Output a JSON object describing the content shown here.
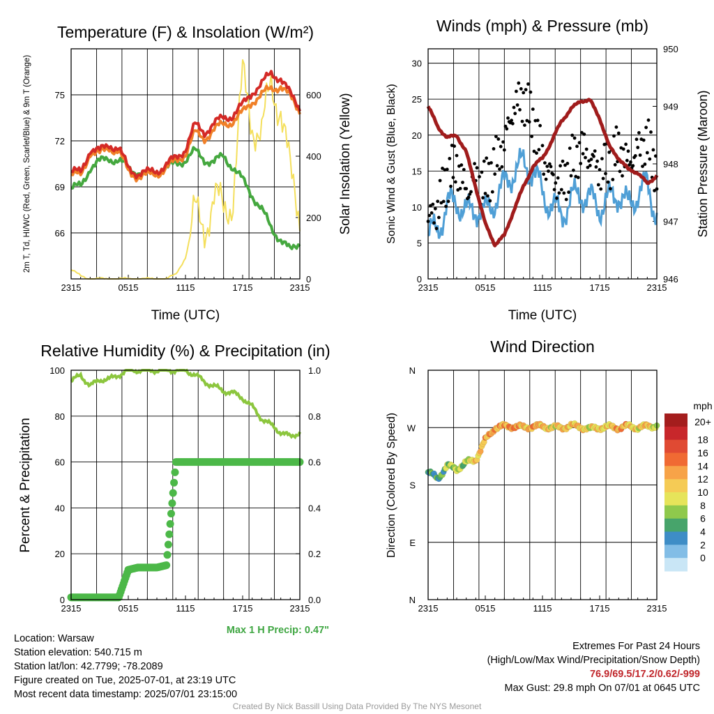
{
  "chart_data": [
    {
      "id": "temperature",
      "type": "line",
      "title": "Temperature (F) & Insolation (W/m²)",
      "xlabel": "Time (UTC)",
      "ylabel": "2m T, Td, HI/WC (Red, Green, Scarlet/Blue) & 9m T (Orange)",
      "ylabel_right": "Solar Insolation (Yellow)",
      "x_ticks": [
        "2315",
        "0515",
        "1115",
        "1715",
        "2315"
      ],
      "x": [
        0,
        1,
        2,
        3,
        4,
        5,
        6,
        7,
        8,
        9,
        10,
        11,
        12,
        13,
        14,
        15,
        16,
        17,
        18,
        19,
        20,
        21,
        22,
        23,
        24
      ],
      "ylim": [
        63,
        78
      ],
      "y_ticks": [
        66,
        69,
        72,
        75
      ],
      "ylim_right": [
        0,
        750
      ],
      "y_ticks_right": [
        0,
        200,
        400,
        600
      ],
      "series": [
        {
          "role": "2m T",
          "color": "#d42a26",
          "axis": "left",
          "values": [
            70.0,
            69.9,
            71.5,
            71.3,
            71.8,
            71.5,
            70.2,
            69.9,
            69.9,
            70.1,
            70.4,
            70.9,
            71.5,
            73.0,
            72.6,
            73.1,
            73.5,
            73.7,
            74.3,
            75.2,
            75.7,
            76.4,
            76.1,
            75.0,
            74.2
          ]
        },
        {
          "role": "9m T",
          "color": "#f08028",
          "axis": "left",
          "values": [
            69.8,
            69.7,
            71.3,
            71.1,
            71.6,
            71.3,
            70.0,
            69.7,
            69.7,
            69.9,
            70.2,
            70.7,
            71.2,
            72.5,
            72.2,
            72.7,
            73.1,
            73.3,
            73.8,
            74.6,
            75.0,
            75.4,
            75.6,
            74.8,
            74.0
          ]
        },
        {
          "role": "Td",
          "color": "#45a83f",
          "axis": "left",
          "values": [
            68.9,
            69.0,
            70.3,
            70.6,
            70.9,
            70.7,
            70.2,
            70.0,
            69.8,
            70.0,
            70.2,
            70.5,
            70.8,
            71.3,
            70.8,
            70.6,
            71.0,
            70.3,
            69.4,
            68.5,
            67.5,
            66.3,
            65.6,
            64.8,
            65.4
          ]
        },
        {
          "role": "Solar Insolation",
          "color": "#f4df5c",
          "axis": "right",
          "values": [
            30,
            10,
            0,
            0,
            0,
            0,
            0,
            0,
            0,
            0,
            0,
            15,
            70,
            210,
            180,
            250,
            230,
            270,
            650,
            520,
            460,
            640,
            560,
            330,
            220
          ]
        }
      ]
    },
    {
      "id": "winds",
      "type": "line",
      "title": "Winds (mph) & Pressure (mb)",
      "xlabel": "Time (UTC)",
      "ylabel": "Sonic Wind & Gust (Blue, Black)",
      "ylabel_right": "Station Pressure (Maroon)",
      "x_ticks": [
        "2315",
        "0515",
        "1115",
        "1715",
        "2315"
      ],
      "x": [
        0,
        1,
        2,
        3,
        4,
        5,
        6,
        7,
        8,
        9,
        10,
        11,
        12,
        13,
        14,
        15,
        16,
        17,
        18,
        19,
        20,
        21,
        22,
        23,
        24
      ],
      "ylim": [
        0,
        32
      ],
      "y_ticks": [
        0,
        5,
        10,
        15,
        20,
        25,
        30
      ],
      "ylim_right": [
        946,
        950
      ],
      "y_ticks_right": [
        946,
        947,
        948,
        949,
        950
      ],
      "series": [
        {
          "role": "Sonic Wind",
          "color": "#4f9fd6",
          "axis": "left",
          "values": [
            6,
            7,
            10,
            11,
            9,
            10,
            9,
            11,
            13,
            15,
            16,
            15,
            12,
            10,
            9,
            11,
            12,
            11,
            10,
            11,
            12,
            10,
            12,
            13,
            9
          ]
        },
        {
          "role": "Gust",
          "color": "#000000",
          "axis": "left",
          "style": "dots",
          "values": [
            8,
            10,
            14,
            16,
            12,
            14,
            13,
            16,
            19,
            24,
            25,
            22,
            17,
            14,
            13,
            16,
            18,
            17,
            15,
            16,
            18,
            16,
            18,
            19,
            15
          ]
        },
        {
          "role": "Station Pressure",
          "color": "#a01c1c",
          "axis": "right",
          "values": [
            949.0,
            948.65,
            948.45,
            948.5,
            948.2,
            947.6,
            946.95,
            946.6,
            946.75,
            947.2,
            947.6,
            947.95,
            948.1,
            948.4,
            948.75,
            948.95,
            949.1,
            949.1,
            948.8,
            948.3,
            948.1,
            947.9,
            947.85,
            947.65,
            947.8
          ]
        }
      ]
    },
    {
      "id": "humidity",
      "type": "line",
      "title": "Relative Humidity (%) & Precipitation (in)",
      "ylabel": "Percent & Precipitation",
      "x_ticks": [
        "2315",
        "0515",
        "1115",
        "1715",
        "2315"
      ],
      "x": [
        0,
        1,
        2,
        3,
        4,
        5,
        6,
        7,
        8,
        9,
        10,
        11,
        12,
        13,
        14,
        15,
        16,
        17,
        18,
        19,
        20,
        21,
        22,
        23,
        24
      ],
      "ylim": [
        0,
        100
      ],
      "y_ticks": [
        0,
        20,
        40,
        60,
        80,
        100
      ],
      "ylim_right": [
        0,
        1.0
      ],
      "y_ticks_right": [
        "0.0",
        "0.2",
        "0.4",
        "0.6",
        "0.8",
        "1.0"
      ],
      "series": [
        {
          "role": "Relative Humidity",
          "color": "#8cc63e",
          "axis": "left",
          "values": [
            95,
            98,
            93,
            96,
            96,
            98,
            100,
            100,
            100,
            100,
            100,
            100,
            100,
            98,
            95,
            93,
            91,
            90,
            88,
            84,
            79,
            76,
            73,
            71,
            73
          ]
        },
        {
          "role": "Precipitation",
          "color": "#4cb848",
          "axis": "right",
          "style": "dots",
          "values": [
            0.01,
            0.01,
            0.01,
            0.01,
            0.01,
            0.01,
            0.13,
            0.14,
            0.14,
            0.14,
            0.15,
            0.6,
            0.6,
            0.6,
            0.6,
            0.6,
            0.6,
            0.6,
            0.6,
            0.6,
            0.6,
            0.6,
            0.6,
            0.6,
            0.6
          ]
        }
      ],
      "annotation": "Max 1 H Precip: 0.47\""
    },
    {
      "id": "direction",
      "type": "scatter",
      "title": "Wind Direction",
      "ylabel": "Direction (Colored By Speed)",
      "x_ticks": [
        "2315",
        "0515",
        "1115",
        "1715",
        "2315"
      ],
      "x": [
        0,
        1,
        2,
        3,
        4,
        5,
        6,
        7,
        8,
        9,
        10,
        11,
        12,
        13,
        14,
        15,
        16,
        17,
        18,
        19,
        20,
        21,
        22,
        23,
        24
      ],
      "y_ticks": [
        "N",
        "E",
        "S",
        "W",
        "N"
      ],
      "ylim": [
        0,
        360
      ],
      "values": [
        200,
        190,
        210,
        205,
        215,
        220,
        250,
        270,
        272,
        272,
        270,
        272,
        272,
        270,
        270,
        273,
        271,
        268,
        270,
        271,
        270,
        272,
        270,
        272,
        273
      ],
      "speeds": [
        6,
        5,
        8,
        9,
        8,
        12,
        13,
        14,
        13,
        15,
        12,
        14,
        13,
        11,
        12,
        13,
        12,
        10,
        12,
        11,
        14,
        12,
        11,
        13,
        8
      ],
      "legend": {
        "unit": "mph",
        "labels": [
          "20+",
          "18",
          "16",
          "14",
          "12",
          "10",
          "8",
          "6",
          "4",
          "2",
          "0"
        ],
        "colors": [
          "#a41d1d",
          "#c8272b",
          "#e04a33",
          "#f06a33",
          "#f7a348",
          "#f5cb55",
          "#e6e45a",
          "#8fc94c",
          "#47a46b",
          "#3e8dc6",
          "#82bde6",
          "#c9e6f6"
        ]
      }
    }
  ],
  "info_left": {
    "location": "Location: Warsaw",
    "elevation": "Station elevation: 540.715 m",
    "latlon": "Station lat/lon: 42.7799; -78.2089",
    "created": "Figure created on Tue, 2025-07-01, at 23:19 UTC",
    "recent": "Most recent data timestamp: 2025/07/01 23:15:00"
  },
  "info_right": {
    "title": "Extremes For Past 24 Hours",
    "subtitle": "(High/Low/Max Wind/Precipitation/Snow Depth)",
    "values": "76.9/69.5/17.2/0.62/-999",
    "gust": "Max Gust: 29.8 mph On 07/01 at 0645 UTC"
  },
  "credit": "Created By Nick Bassill Using Data Provided By The NYS Mesonet"
}
